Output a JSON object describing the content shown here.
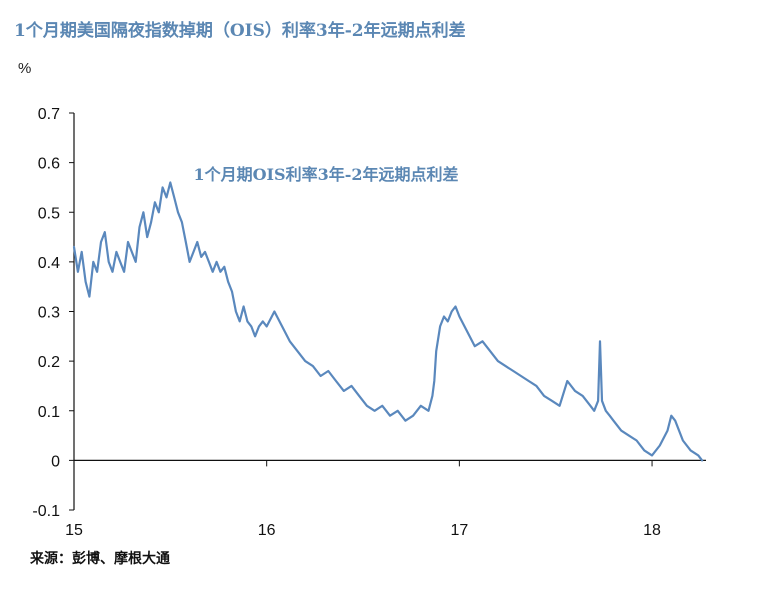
{
  "header": {
    "title": "1个月期美国隔夜指数掉期（OIS）利率3年-2年远期点利差",
    "unit": "%"
  },
  "footer": {
    "source": "来源：彭博、摩根大通"
  },
  "colors": {
    "line": "#5a88bd",
    "title": "#5b87b3",
    "axis": "#111111"
  },
  "chart_data": {
    "type": "line",
    "title": "1个月期美国隔夜指数掉期（OIS）利率3年-2年远期点利差",
    "ylabel": "%",
    "xlabel": "",
    "xlim": [
      2015.0,
      2018.28
    ],
    "ylim": [
      -0.1,
      0.7
    ],
    "yticks": [
      -0.1,
      0,
      0.1,
      0.2,
      0.3,
      0.4,
      0.5,
      0.6,
      0.7
    ],
    "ytick_labels": [
      "-0.1",
      "0",
      "0.1",
      "0.2",
      "0.3",
      "0.4",
      "0.5",
      "0.6",
      "0.7"
    ],
    "xticks": [
      2015,
      2016,
      2017,
      2018
    ],
    "xtick_labels": [
      "15",
      "16",
      "17",
      "18"
    ],
    "grid": false,
    "annotations": [
      {
        "text": "1个月期OIS利率3年-2年远期点利差",
        "x": 2015.62,
        "y": 0.565
      }
    ],
    "series": [
      {
        "name": "1个月期OIS利率3年-2年远期点利差",
        "x": [
          2015.0,
          2015.02,
          2015.04,
          2015.06,
          2015.08,
          2015.1,
          2015.12,
          2015.14,
          2015.16,
          2015.18,
          2015.2,
          2015.22,
          2015.24,
          2015.26,
          2015.28,
          2015.3,
          2015.32,
          2015.34,
          2015.36,
          2015.38,
          2015.4,
          2015.42,
          2015.44,
          2015.46,
          2015.48,
          2015.5,
          2015.52,
          2015.54,
          2015.56,
          2015.58,
          2015.6,
          2015.62,
          2015.64,
          2015.66,
          2015.68,
          2015.7,
          2015.72,
          2015.74,
          2015.76,
          2015.78,
          2015.8,
          2015.82,
          2015.84,
          2015.86,
          2015.88,
          2015.9,
          2015.92,
          2015.94,
          2015.96,
          2015.98,
          2016.0,
          2016.04,
          2016.08,
          2016.12,
          2016.16,
          2016.2,
          2016.24,
          2016.28,
          2016.32,
          2016.36,
          2016.4,
          2016.44,
          2016.48,
          2016.52,
          2016.56,
          2016.6,
          2016.64,
          2016.68,
          2016.72,
          2016.76,
          2016.8,
          2016.84,
          2016.86,
          2016.87,
          2016.88,
          2016.9,
          2016.92,
          2016.94,
          2016.96,
          2016.98,
          2017.0,
          2017.04,
          2017.08,
          2017.12,
          2017.16,
          2017.2,
          2017.24,
          2017.28,
          2017.32,
          2017.36,
          2017.4,
          2017.44,
          2017.48,
          2017.52,
          2017.56,
          2017.6,
          2017.64,
          2017.68,
          2017.7,
          2017.72,
          2017.73,
          2017.74,
          2017.76,
          2017.78,
          2017.8,
          2017.84,
          2017.88,
          2017.92,
          2017.96,
          2018.0,
          2018.04,
          2018.08,
          2018.1,
          2018.12,
          2018.16,
          2018.2,
          2018.24,
          2018.26
        ],
        "values": [
          0.43,
          0.38,
          0.42,
          0.36,
          0.33,
          0.4,
          0.38,
          0.44,
          0.46,
          0.4,
          0.38,
          0.42,
          0.4,
          0.38,
          0.44,
          0.42,
          0.4,
          0.47,
          0.5,
          0.45,
          0.48,
          0.52,
          0.5,
          0.55,
          0.53,
          0.56,
          0.53,
          0.5,
          0.48,
          0.44,
          0.4,
          0.42,
          0.44,
          0.41,
          0.42,
          0.4,
          0.38,
          0.4,
          0.38,
          0.39,
          0.36,
          0.34,
          0.3,
          0.28,
          0.31,
          0.28,
          0.27,
          0.25,
          0.27,
          0.28,
          0.27,
          0.3,
          0.27,
          0.24,
          0.22,
          0.2,
          0.19,
          0.17,
          0.18,
          0.16,
          0.14,
          0.15,
          0.13,
          0.11,
          0.1,
          0.11,
          0.09,
          0.1,
          0.08,
          0.09,
          0.11,
          0.1,
          0.13,
          0.16,
          0.22,
          0.27,
          0.29,
          0.28,
          0.3,
          0.31,
          0.29,
          0.26,
          0.23,
          0.24,
          0.22,
          0.2,
          0.19,
          0.18,
          0.17,
          0.16,
          0.15,
          0.13,
          0.12,
          0.11,
          0.16,
          0.14,
          0.13,
          0.11,
          0.1,
          0.12,
          0.24,
          0.12,
          0.1,
          0.09,
          0.08,
          0.06,
          0.05,
          0.04,
          0.02,
          0.01,
          0.03,
          0.06,
          0.09,
          0.08,
          0.04,
          0.02,
          0.01,
          0.0
        ]
      }
    ]
  }
}
